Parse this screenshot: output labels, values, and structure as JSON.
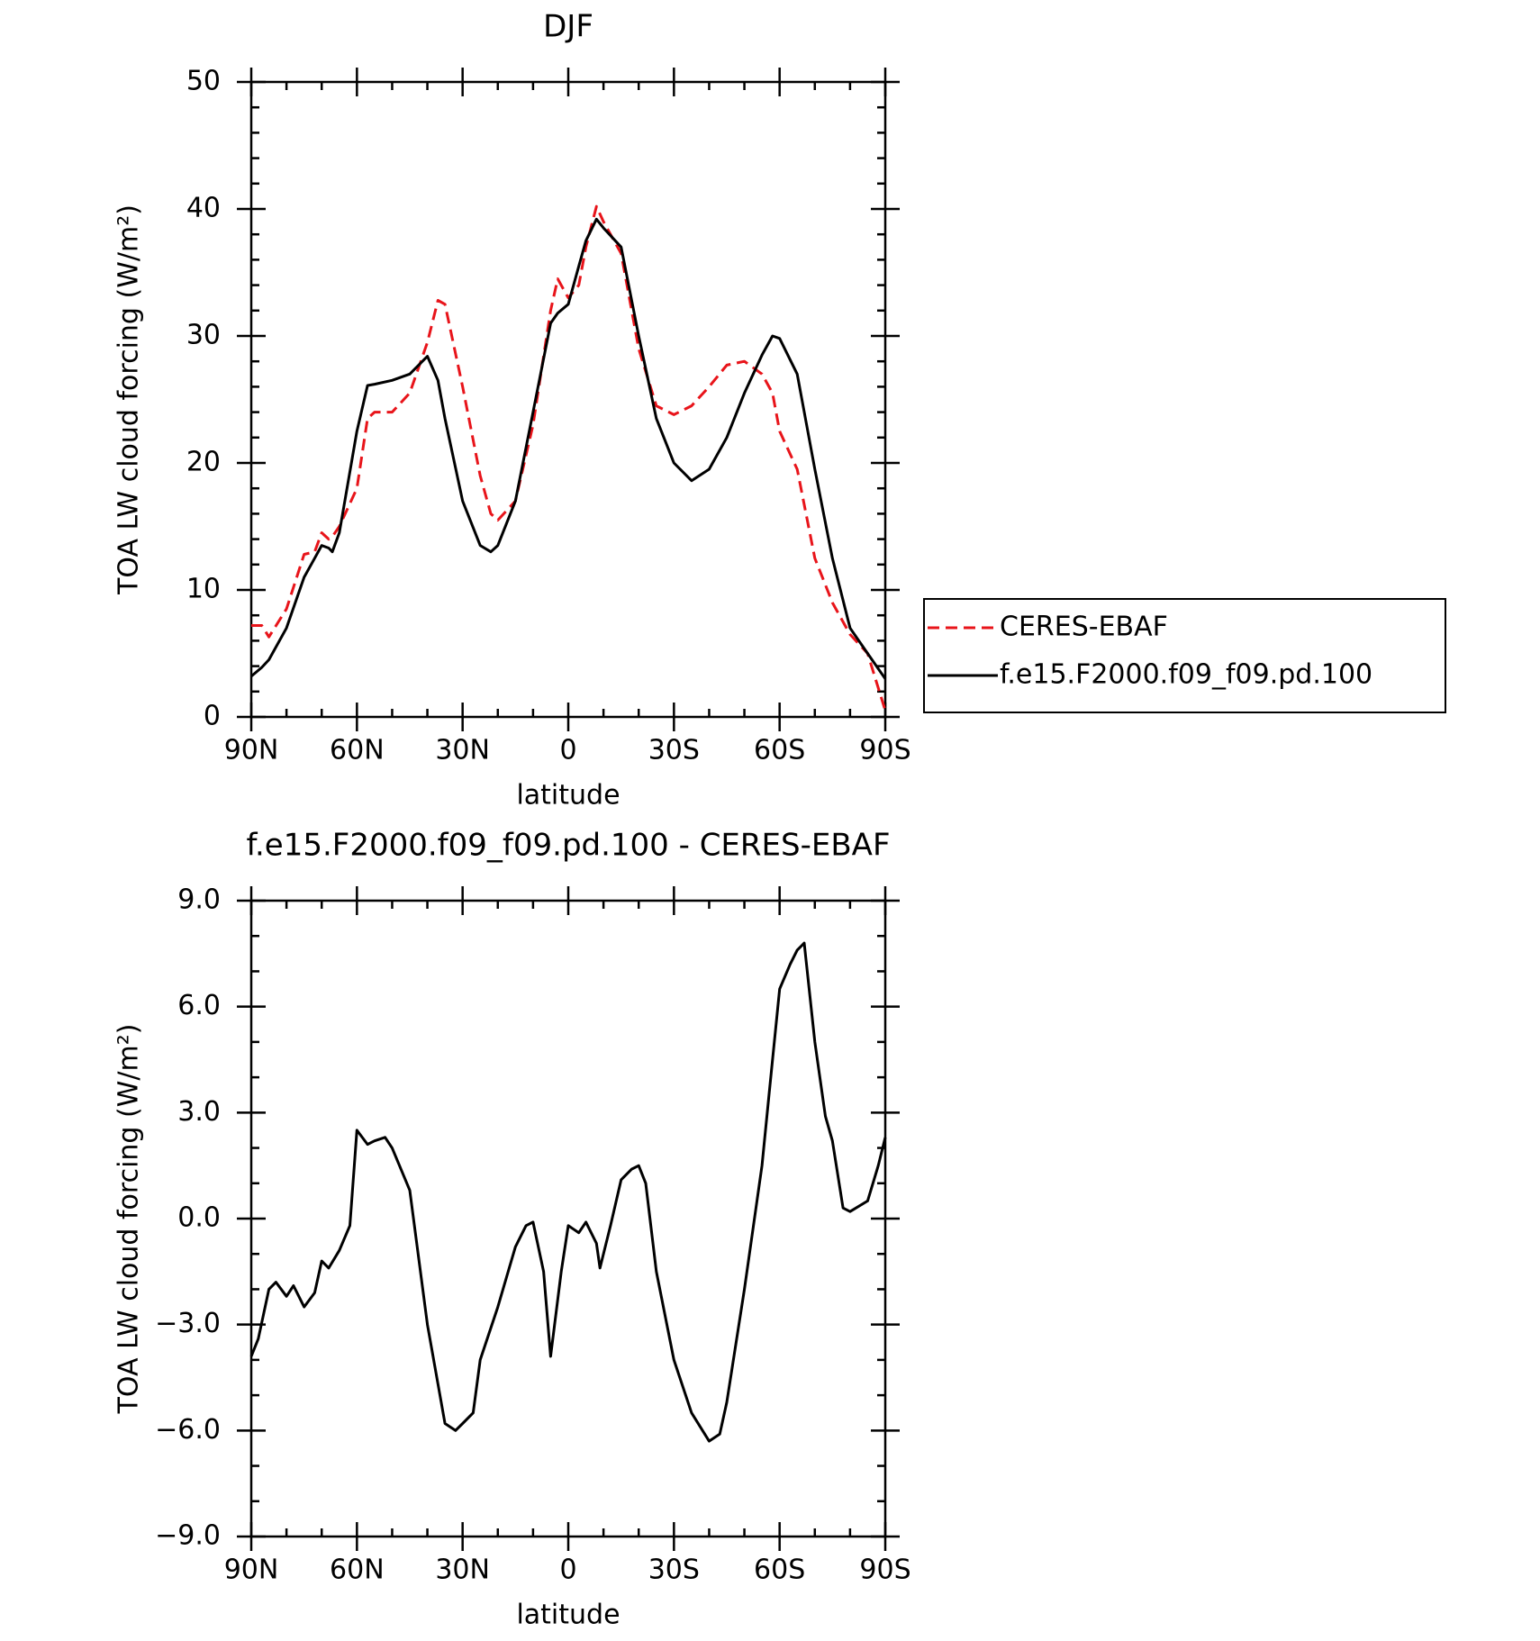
{
  "chart_data": [
    {
      "type": "line",
      "title": "DJF",
      "xlabel": "latitude",
      "ylabel": "TOA LW cloud forcing (W/m²)",
      "x": [
        90,
        87,
        85,
        80,
        75,
        72,
        70,
        68,
        67,
        65,
        60,
        57,
        55,
        50,
        45,
        40,
        37,
        35,
        30,
        25,
        22,
        20,
        15,
        10,
        5,
        3,
        0,
        -3,
        -5,
        -8,
        -10,
        -15,
        -20,
        -25,
        -30,
        -35,
        -40,
        -45,
        -50,
        -55,
        -58,
        -60,
        -65,
        -70,
        -75,
        -80,
        -85,
        -90
      ],
      "series": [
        {
          "name": "CERES-EBAF",
          "color": "#e8141a",
          "dash": true,
          "values": [
            7.2,
            7.2,
            6.3,
            8.5,
            12.8,
            13,
            14.5,
            14,
            14.2,
            15,
            18,
            23.5,
            24,
            24,
            25.5,
            29.5,
            32.8,
            32.5,
            26,
            19,
            16,
            15.5,
            17,
            23,
            32,
            34.5,
            33,
            34,
            37,
            40.2,
            39,
            36.5,
            29,
            24.5,
            23.8,
            24.5,
            26,
            27.7,
            28,
            27,
            25.5,
            22.5,
            19.5,
            12.5,
            9,
            6.5,
            5,
            0.5
          ]
        },
        {
          "name": "f.e15.F2000.f09_f09.pd.100",
          "color": "#000000",
          "dash": false,
          "values": [
            3.2,
            3.9,
            4.5,
            7,
            11,
            12.5,
            13.5,
            13.3,
            13,
            14.5,
            22.5,
            26.1,
            26.2,
            26.5,
            27,
            28.4,
            26.5,
            23.5,
            17,
            13.5,
            13,
            13.5,
            17,
            24,
            31,
            31.8,
            32.5,
            35.5,
            37.5,
            39.2,
            38.5,
            37,
            30,
            23.5,
            20,
            18.6,
            19.5,
            22,
            25.5,
            28.5,
            30,
            29.8,
            27,
            19.5,
            12.5,
            7,
            5,
            3
          ]
        }
      ],
      "xlim": [
        90,
        -90
      ],
      "xticks": [
        {
          "value": 90,
          "label": "90N"
        },
        {
          "value": 60,
          "label": "60N"
        },
        {
          "value": 30,
          "label": "30N"
        },
        0,
        {
          "value": -30,
          "label": "30S"
        },
        {
          "value": -60,
          "label": "60S"
        },
        {
          "value": -90,
          "label": "90S"
        }
      ],
      "x_minor_ticks": [
        80,
        70,
        50,
        40,
        20,
        10,
        -10,
        -20,
        -40,
        -50,
        -70,
        -80
      ],
      "ylim": [
        0,
        50
      ],
      "yticks": [
        0,
        10,
        20,
        30,
        40,
        50
      ],
      "y_minor_ticks": [
        2,
        4,
        6,
        8,
        12,
        14,
        16,
        18,
        22,
        24,
        26,
        28,
        32,
        34,
        36,
        38,
        42,
        44,
        46,
        48
      ],
      "legend": "right"
    },
    {
      "type": "line",
      "title": "f.e15.F2000.f09_f09.pd.100 - CERES-EBAF",
      "xlabel": "latitude",
      "ylabel": "TOA LW cloud forcing (W/m²)",
      "x": [
        90,
        88,
        85,
        83,
        80,
        78,
        75,
        72,
        70,
        68,
        65,
        62,
        60,
        57,
        55,
        52,
        50,
        45,
        40,
        35,
        32,
        30,
        27,
        25,
        20,
        15,
        12,
        10,
        7,
        5,
        2,
        0,
        -3,
        -5,
        -8,
        -9,
        -12,
        -15,
        -18,
        -20,
        -22,
        -25,
        -30,
        -35,
        -40,
        -43,
        -45,
        -50,
        -55,
        -57,
        -60,
        -63,
        -65,
        -67,
        -70,
        -73,
        -75,
        -78,
        -80,
        -85,
        -88,
        -90
      ],
      "series": [
        {
          "color": "#000000",
          "dash": false,
          "values": [
            -3.9,
            -3.4,
            -2.0,
            -1.8,
            -2.2,
            -1.9,
            -2.5,
            -2.1,
            -1.2,
            -1.4,
            -0.9,
            -0.2,
            2.5,
            2.1,
            2.2,
            2.3,
            2.0,
            0.8,
            -3.0,
            -5.8,
            -6.0,
            -5.8,
            -5.5,
            -4.0,
            -2.5,
            -0.8,
            -0.2,
            -0.1,
            -1.5,
            -3.9,
            -1.5,
            -0.2,
            -0.4,
            -0.1,
            -0.7,
            -1.4,
            -0.2,
            1.1,
            1.4,
            1.5,
            1.0,
            -1.5,
            -4.0,
            -5.5,
            -6.3,
            -6.1,
            -5.2,
            -2.0,
            1.5,
            3.5,
            6.5,
            7.2,
            7.6,
            7.8,
            5.0,
            2.9,
            2.2,
            0.3,
            0.2,
            0.5,
            1.5,
            2.3
          ]
        }
      ],
      "xlim": [
        90,
        -90
      ],
      "xticks": [
        {
          "value": 90,
          "label": "90N"
        },
        {
          "value": 60,
          "label": "60N"
        },
        {
          "value": 30,
          "label": "30N"
        },
        0,
        {
          "value": -30,
          "label": "30S"
        },
        {
          "value": -60,
          "label": "60S"
        },
        {
          "value": -90,
          "label": "90S"
        }
      ],
      "x_minor_ticks": [
        80,
        70,
        50,
        40,
        20,
        10,
        -10,
        -20,
        -40,
        -50,
        -70,
        -80
      ],
      "ylim": [
        -9,
        9
      ],
      "yticks": [
        {
          "value": -9,
          "label": "−9.0"
        },
        {
          "value": -6,
          "label": "−6.0"
        },
        {
          "value": -3,
          "label": "−3.0"
        },
        {
          "value": 0,
          "label": "0.0"
        },
        {
          "value": 3,
          "label": "3.0"
        },
        {
          "value": 6,
          "label": "6.0"
        },
        {
          "value": 9,
          "label": "9.0"
        }
      ],
      "y_minor_ticks": [
        8,
        7,
        5,
        4,
        2,
        1,
        -1,
        -2,
        -4,
        -5,
        -7,
        -8
      ]
    }
  ]
}
